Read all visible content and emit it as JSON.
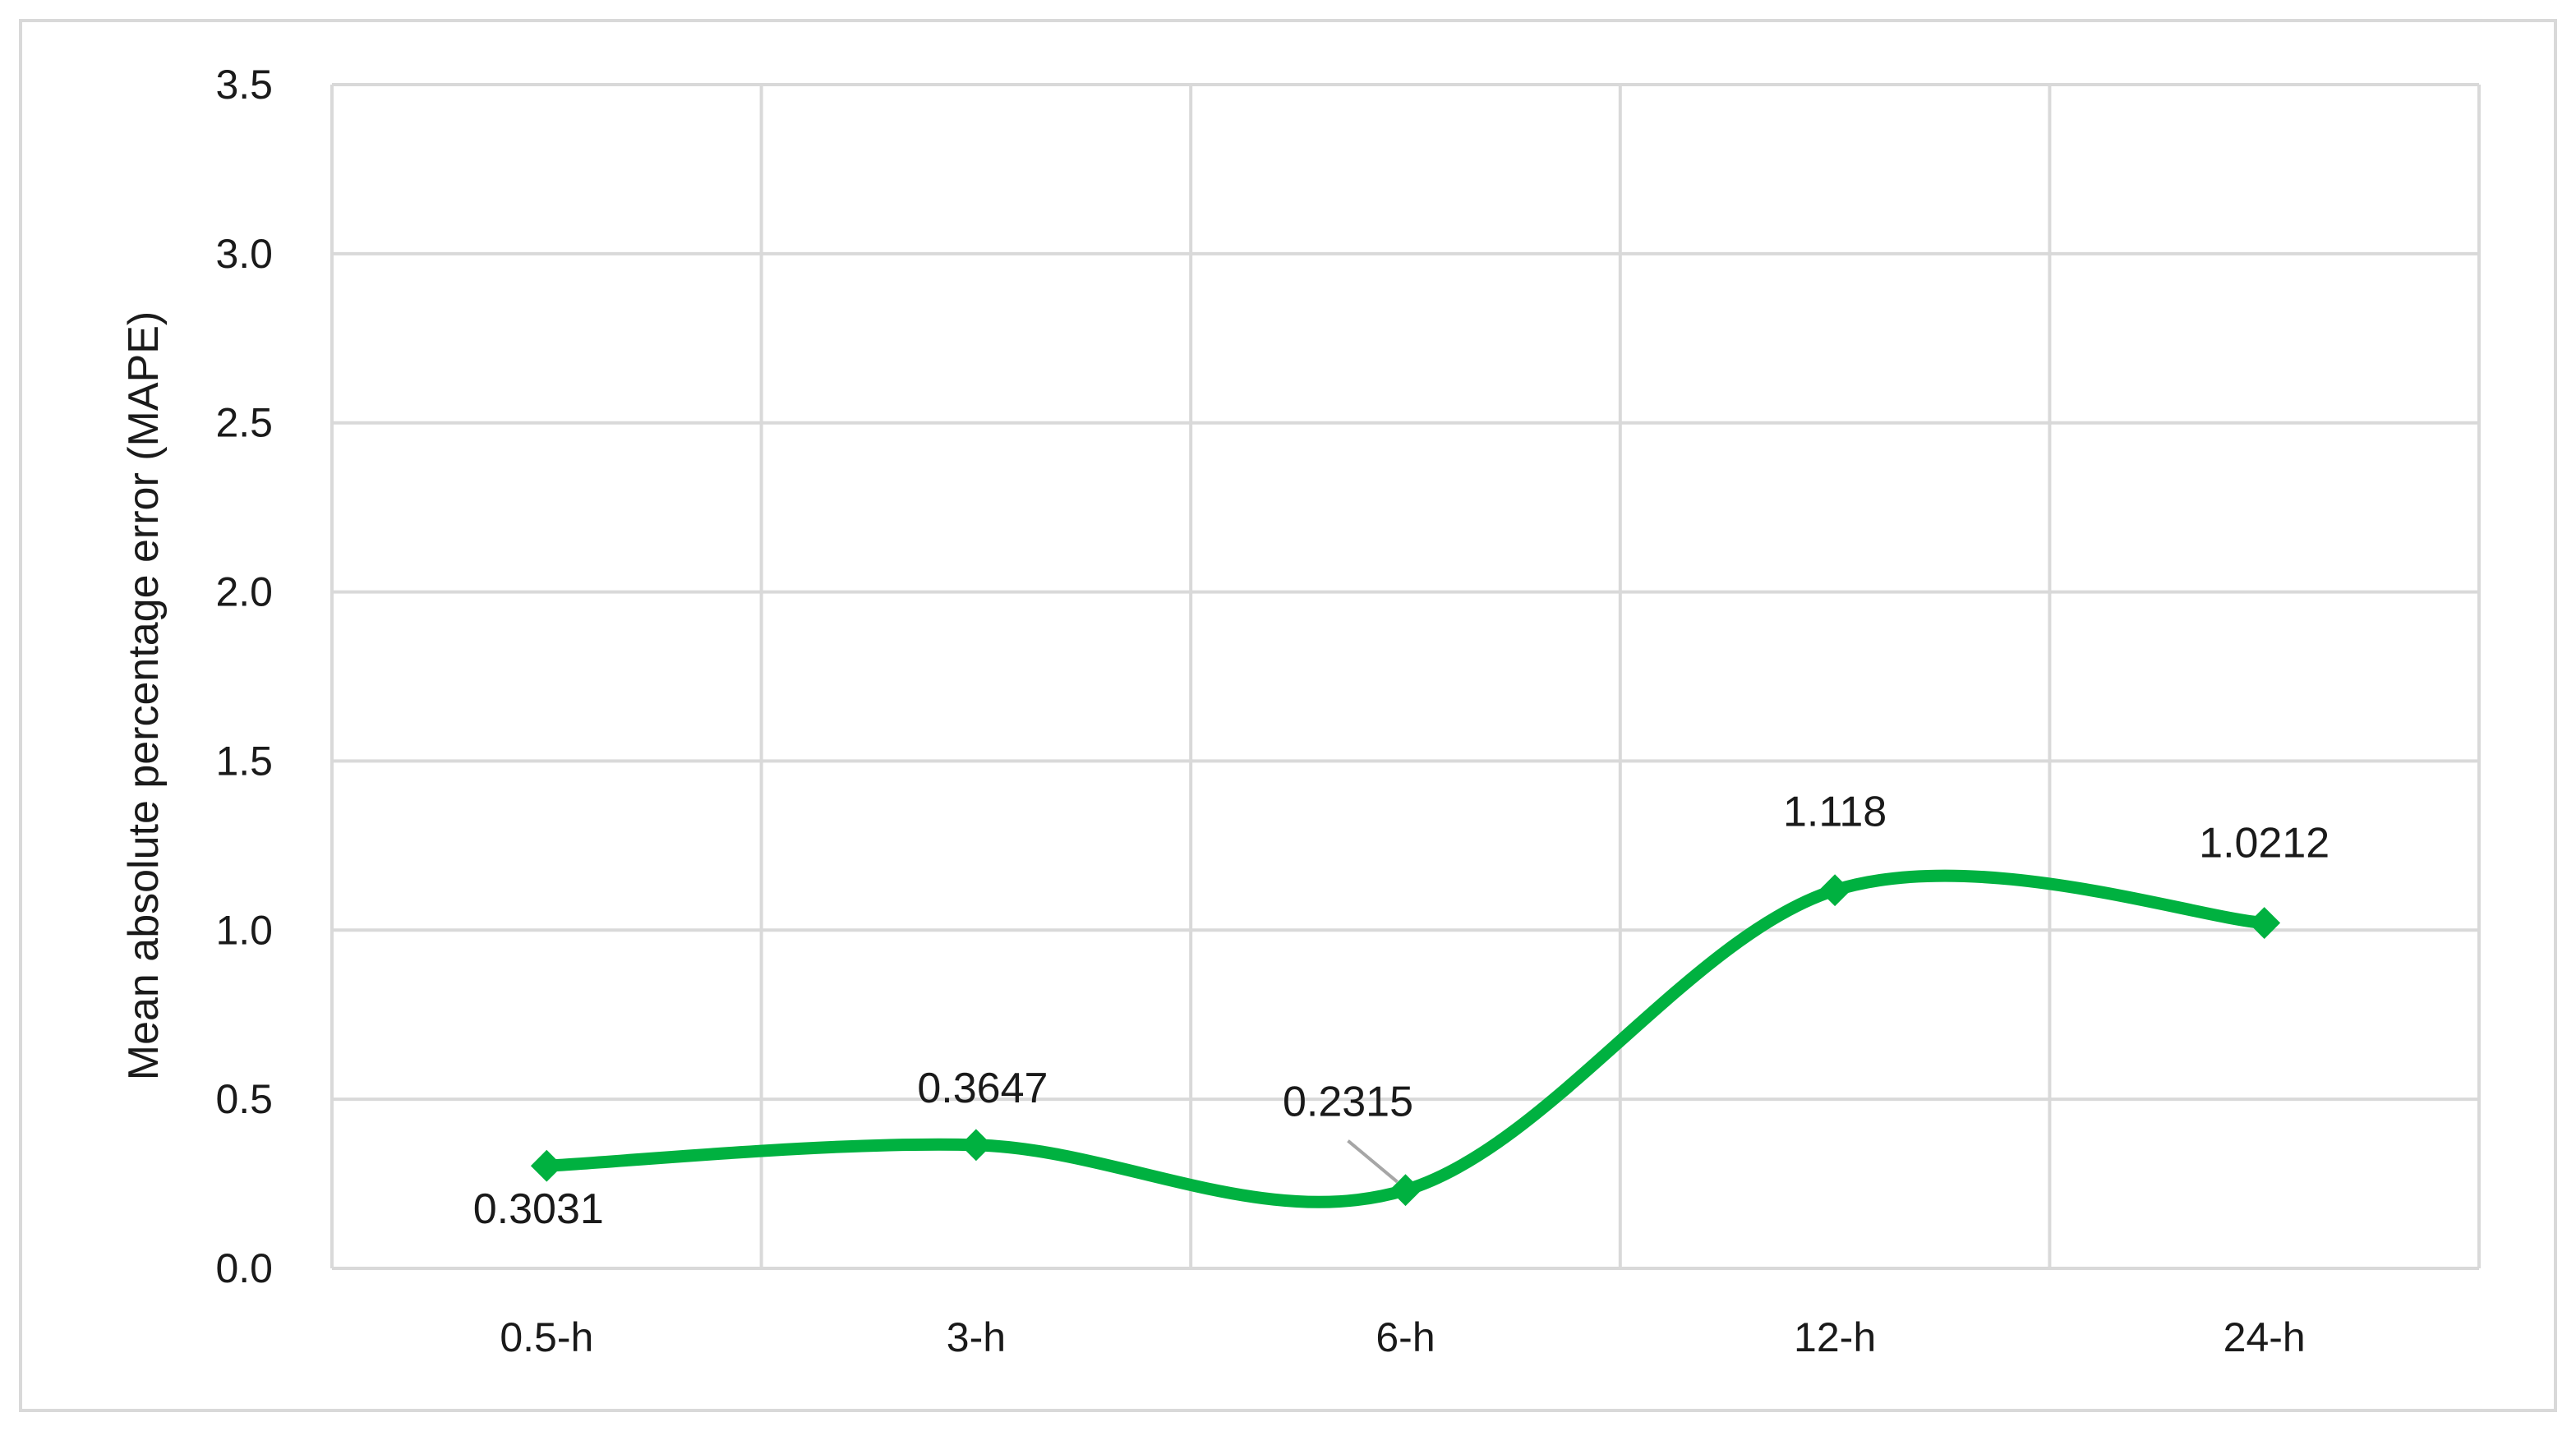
{
  "chart_data": {
    "type": "line",
    "title": "",
    "xlabel": "",
    "ylabel": "Mean absolute percentage error (MAPE)",
    "categories": [
      "0.5-h",
      "3-h",
      "6-h",
      "12-h",
      "24-h"
    ],
    "series": [
      {
        "values": [
          0.3031,
          0.3647,
          0.2315,
          1.118,
          1.0212
        ],
        "data_labels": [
          "0.3031",
          "0.3647",
          "0.2315",
          "1.118",
          "1.0212"
        ],
        "color": "#00b140",
        "marker": "diamond",
        "smooth": true
      }
    ],
    "ylim": [
      0,
      3.5
    ],
    "yticks": [
      0,
      0.5,
      1,
      1.5,
      2,
      2.5,
      3,
      3.5
    ],
    "ytick_labels": [
      "0.0",
      "0.5",
      "1.0",
      "1.5",
      "2.0",
      "2.5",
      "3.0",
      "3.5"
    ],
    "grid": true,
    "legend": "none",
    "colors": {
      "line": "#00b140",
      "grid": "#d9d9d9",
      "frame": "#d9d9d9",
      "text": "#1a1a1a",
      "leader": "#a6a6a6"
    }
  }
}
